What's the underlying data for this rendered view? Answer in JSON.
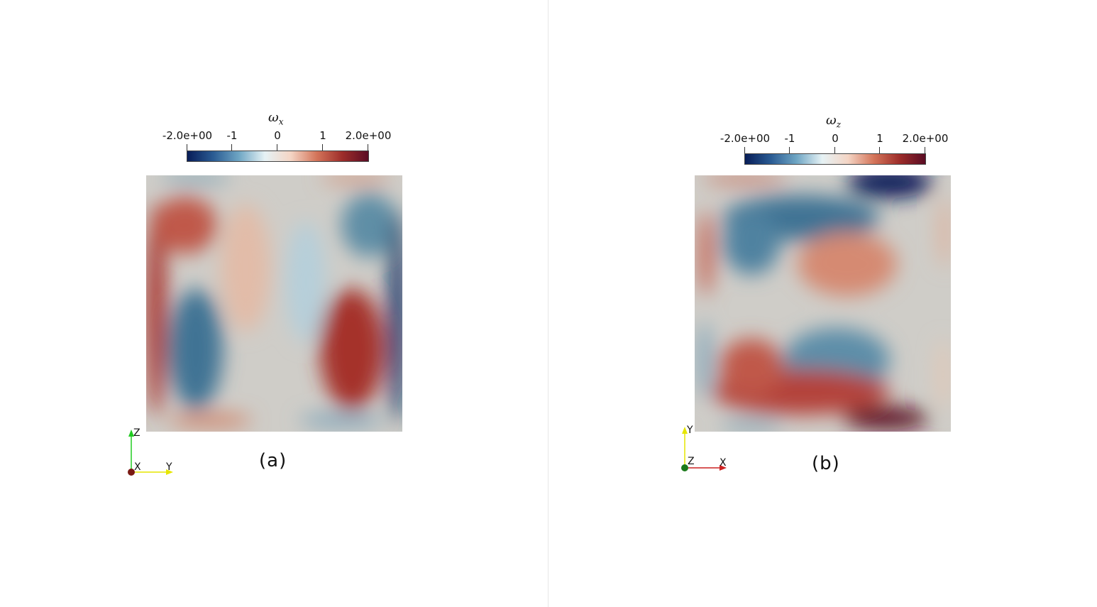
{
  "panels": [
    {
      "id": "a",
      "caption": "(a)",
      "colorbar": {
        "symbol": "ω",
        "subscript": "x",
        "ticks": [
          "-2.0e+00",
          "-1",
          "0",
          "1",
          "2.0e+00"
        ],
        "range": [
          -2.0,
          2.0
        ],
        "colormap": [
          "#081d58",
          "#2a5b93",
          "#6fa6c4",
          "#e6f2f5",
          "#f4d5c5",
          "#d4755a",
          "#9d2d2a",
          "#5a0c24"
        ]
      },
      "axes": {
        "up": "Z",
        "right": "Y",
        "out": "X",
        "up_color": "#22cc22",
        "right_color": "#e6e600",
        "origin_color": "#7a1a14"
      }
    },
    {
      "id": "b",
      "caption": "(b)",
      "colorbar": {
        "symbol": "ω",
        "subscript": "z",
        "ticks": [
          "-2.0e+00",
          "-1",
          "0",
          "1",
          "2.0e+00"
        ],
        "range": [
          -2.0,
          2.0
        ],
        "colormap": [
          "#081d58",
          "#2a5b93",
          "#6fa6c4",
          "#e6f2f5",
          "#f4d5c5",
          "#d4755a",
          "#9d2d2a",
          "#5a0c24"
        ]
      },
      "axes": {
        "up": "Y",
        "right": "X",
        "out": "Z",
        "up_color": "#e6e600",
        "right_color": "#cc2222",
        "origin_color": "#1a7a1a"
      }
    }
  ]
}
